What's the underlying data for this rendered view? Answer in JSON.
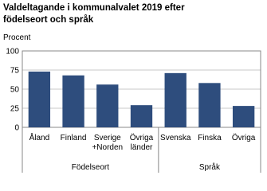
{
  "chart_data": {
    "type": "bar",
    "title": "Valdeltagande i kommunalvalet 2019 efter\nfödelseort och språk",
    "y_label": "Procent",
    "color": "#2e4d7d",
    "ylim": [
      0,
      100
    ],
    "yticks": [
      0,
      25,
      50,
      75,
      100
    ],
    "grid": true,
    "groups": [
      {
        "name": "Födelseort",
        "categories": [
          "Åland",
          "Finland",
          "Sverige\n+Norden",
          "Övriga\nländer"
        ],
        "values": [
          73,
          68,
          56,
          29
        ]
      },
      {
        "name": "Språk",
        "categories": [
          "Svenska",
          "Finska",
          "Övriga"
        ],
        "values": [
          71,
          58,
          28
        ]
      }
    ]
  }
}
